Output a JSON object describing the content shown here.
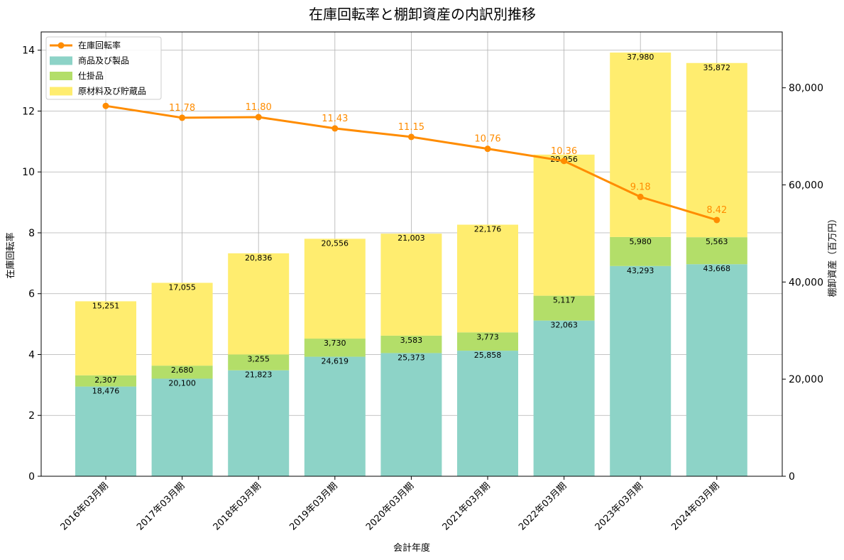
{
  "chart_data": {
    "type": "bar",
    "title": "在庫回転率と棚卸資産の内訳別推移",
    "xlabel": "会計年度",
    "ylabel_left": "在庫回転率",
    "ylabel_right": "棚卸資産（百万円）",
    "ylim_left": [
      0,
      14.6
    ],
    "yticks_left": [
      0,
      2,
      4,
      6,
      8,
      10,
      12,
      14
    ],
    "ylim_right": [
      0,
      91500
    ],
    "yticks_right": [
      0,
      20000,
      40000,
      60000,
      80000
    ],
    "yticks_right_labels": [
      "0",
      "20,000",
      "40,000",
      "60,000",
      "80,000"
    ],
    "grid": true,
    "legend_position": "top-left",
    "categories": [
      "2016年03月期",
      "2017年03月期",
      "2018年03月期",
      "2019年03月期",
      "2020年03月期",
      "2021年03月期",
      "2022年03月期",
      "2023年03月期",
      "2024年03月期"
    ],
    "series": [
      {
        "name": "商品及び製品",
        "kind": "bar",
        "axis": "right",
        "color": "#8dd3c7",
        "values": [
          18476,
          20100,
          21823,
          24619,
          25373,
          25858,
          32063,
          43293,
          43668
        ],
        "labels": [
          "18,476",
          "20,100",
          "21,823",
          "24,619",
          "25,373",
          "25,858",
          "32,063",
          "43,293",
          "43,668"
        ]
      },
      {
        "name": "仕掛品",
        "kind": "bar",
        "axis": "right",
        "color": "#b3de69",
        "values": [
          2307,
          2680,
          3255,
          3730,
          3583,
          3773,
          5117,
          5980,
          5563
        ],
        "labels": [
          "2,307",
          "2,680",
          "3,255",
          "3,730",
          "3,583",
          "3,773",
          "5,117",
          "5,980",
          "5,563"
        ]
      },
      {
        "name": "原材料及び貯蔵品",
        "kind": "bar",
        "axis": "right",
        "color": "#ffed6f",
        "values": [
          15251,
          17055,
          20836,
          20556,
          21003,
          22176,
          29056,
          37980,
          35872
        ],
        "labels": [
          "15,251",
          "17,055",
          "20,836",
          "20,556",
          "21,003",
          "22,176",
          "29,056",
          "37,980",
          "35,872"
        ]
      },
      {
        "name": "在庫回転率",
        "kind": "line",
        "axis": "left",
        "color": "#ff8c00",
        "values": [
          12.17,
          11.78,
          11.8,
          11.43,
          11.15,
          10.76,
          10.36,
          9.18,
          8.42
        ],
        "labels": [
          "",
          "11.78",
          "11.80",
          "11.43",
          "11.15",
          "10.76",
          "10.36",
          "9.18",
          "8.42"
        ]
      }
    ]
  }
}
